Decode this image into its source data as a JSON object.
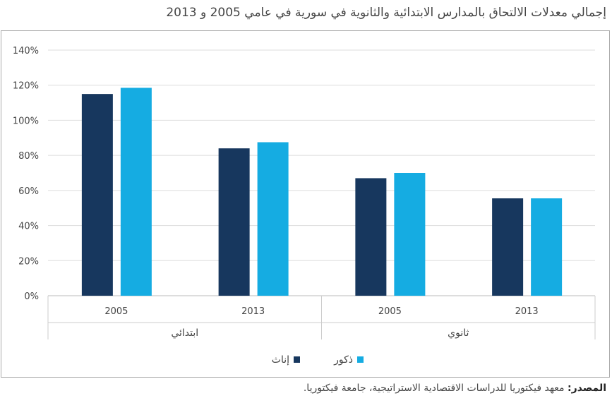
{
  "chart_data": {
    "type": "bar",
    "title": "إجمالي معدلات الالتحاق بالمدارس الابتدائية والثانوية في سورية في عامي 2005 و 2013",
    "groups": [
      "ابتدائي",
      "ثانوي"
    ],
    "categories": [
      "2005",
      "2013",
      "2005",
      "2013"
    ],
    "group_of_category": [
      0,
      0,
      1,
      1
    ],
    "series": [
      {
        "name": "إناث",
        "color": "#17375e",
        "values": [
          115,
          84,
          67,
          55.5
        ]
      },
      {
        "name": "ذكور",
        "color": "#15ace2",
        "values": [
          118.5,
          87.5,
          70,
          55.5
        ]
      }
    ],
    "yticks": [
      "0%",
      "20%",
      "40%",
      "60%",
      "80%",
      "100%",
      "120%",
      "140%"
    ],
    "ylim": [
      0,
      140
    ],
    "grid": true,
    "legend": "bottom"
  },
  "source": {
    "label": "المصدر:",
    "text": " معهد فيكتوريا للدراسات الاقتصادية الاستراتيجية، جامعة فيكتوريا."
  }
}
